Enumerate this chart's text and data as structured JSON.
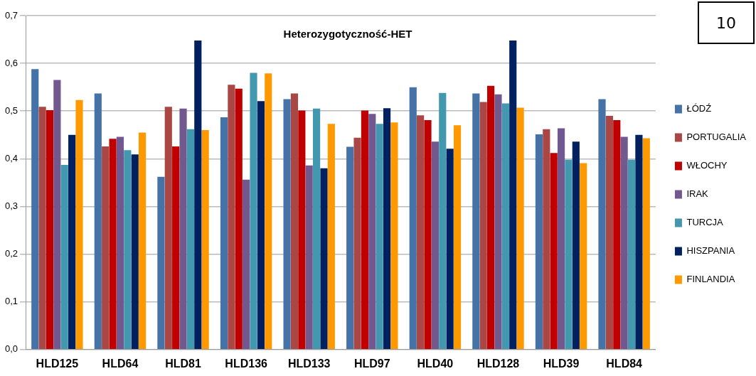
{
  "chart_data": {
    "type": "bar",
    "title": "Heterozygotyczność-HET",
    "annotations": [
      "10"
    ],
    "categories": [
      "HLD125",
      "HLD64",
      "HLD81",
      "HLD136",
      "HLD133",
      "HLD97",
      "HLD40",
      "HLD128",
      "HLD39",
      "HLD84"
    ],
    "series": [
      {
        "name": "ŁÓDŹ",
        "color": "#4572a7",
        "values": [
          0.588,
          0.537,
          0.362,
          0.487,
          0.525,
          0.425,
          0.55,
          0.537,
          0.451,
          0.525
        ]
      },
      {
        "name": "PORTUGALIA",
        "color": "#aa4643",
        "values": [
          0.509,
          0.426,
          0.509,
          0.555,
          0.537,
          0.444,
          0.491,
          0.519,
          0.462,
          0.49
        ]
      },
      {
        "name": "WŁOCHY",
        "color": "#c00000",
        "values": [
          0.502,
          0.442,
          0.426,
          0.547,
          0.501,
          0.501,
          0.481,
          0.553,
          0.412,
          0.481
        ]
      },
      {
        "name": "IRAK",
        "color": "#71588f",
        "values": [
          0.565,
          0.446,
          0.505,
          0.356,
          0.386,
          0.494,
          0.436,
          0.535,
          0.464,
          0.446
        ]
      },
      {
        "name": "TURCJA",
        "color": "#4198af",
        "values": [
          0.387,
          0.418,
          0.462,
          0.58,
          0.505,
          0.473,
          0.538,
          0.516,
          0.398,
          0.398
        ]
      },
      {
        "name": "HISZPANIA",
        "color": "#002060",
        "values": [
          0.45,
          0.409,
          0.648,
          0.521,
          0.38,
          0.506,
          0.421,
          0.648,
          0.436,
          0.45
        ]
      },
      {
        "name": "FINLANDIA",
        "color": "#ff9900",
        "values": [
          0.523,
          0.455,
          0.46,
          0.579,
          0.473,
          0.476,
          0.47,
          0.507,
          0.391,
          0.443
        ]
      }
    ],
    "ylim": [
      0,
      0.7
    ],
    "yticks": [
      {
        "value": 0,
        "label": "0,0"
      },
      {
        "value": 0.1,
        "label": "0,1"
      },
      {
        "value": 0.2,
        "label": "0,2"
      },
      {
        "value": 0.3,
        "label": "0,3"
      },
      {
        "value": 0.4,
        "label": "0,4"
      },
      {
        "value": 0.5,
        "label": "0,5"
      },
      {
        "value": 0.6,
        "label": "0,6"
      },
      {
        "value": 0.7,
        "label": "0,7"
      }
    ],
    "grid": "y",
    "legend": "right"
  }
}
